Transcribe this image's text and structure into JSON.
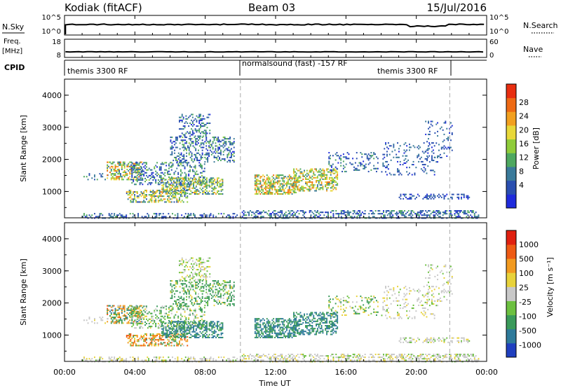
{
  "header": {
    "title": "Kodiak (fitACF)",
    "beam": "Beam 03",
    "date": "15/Jul/2016"
  },
  "panels": {
    "nsky": {
      "label": "N.Sky",
      "tick_top": "10^5",
      "tick_bottom": "10^0",
      "right_label": "N.Search",
      "right_tick_top": "10^5",
      "right_tick_bottom": "10^0"
    },
    "freq": {
      "label_top": "Freq.",
      "label_unit": "[MHz]",
      "tick_top": "18",
      "tick_bottom": "8",
      "right_label": "Nave",
      "right_tick_top": "60",
      "right_tick_bottom": "0"
    },
    "cpid": {
      "label": "CPID",
      "segments": [
        "themis 3300 RF",
        "normalsound (fast) -157 RF",
        "themis 3300 RF"
      ]
    }
  },
  "colorbars": {
    "power": {
      "label": "Power [dB]",
      "ticks": [
        "4",
        "8",
        "12",
        "16",
        "20",
        "24",
        "28"
      ],
      "colors": [
        "#1f2bdc",
        "#2a4fb0",
        "#3a7a9a",
        "#4ea860",
        "#8fcc3a",
        "#e8d83a",
        "#f2a020",
        "#ee6a14",
        "#e82e10"
      ]
    },
    "velocity": {
      "label": "Velocity [m s⁻¹]",
      "ticks": [
        "1000",
        "500",
        "100",
        "25",
        "-25",
        "-100",
        "-500",
        "-1000"
      ],
      "colors": [
        "#1f3fbf",
        "#2e7a9a",
        "#3a9a5a",
        "#6cc040",
        "#c8c8c8",
        "#e8d23a",
        "#f29a20",
        "#ee5a14",
        "#e02010"
      ]
    }
  },
  "chart_data": {
    "type": "heatmap",
    "xlabel": "Time UT",
    "ylabel": "Slant Range [km]",
    "xticks": [
      "00:00",
      "04:00",
      "08:00",
      "12:00",
      "16:00",
      "20:00",
      "00:00"
    ],
    "yticks": [
      "1000",
      "2000",
      "3000",
      "4000"
    ],
    "xlim": [
      0,
      24
    ],
    "ylim": [
      180,
      4500
    ],
    "mode_changes": [
      10.0,
      21.9
    ],
    "echo_regions": [
      {
        "t0": 1.0,
        "t1": 9.8,
        "r0": 150,
        "r1": 320,
        "density": 0.35,
        "pwr": [
          2,
          12
        ],
        "vel": [
          -40,
          40
        ]
      },
      {
        "t0": 10.0,
        "t1": 23.5,
        "r0": 150,
        "r1": 380,
        "density": 0.45,
        "pwr": [
          2,
          12
        ],
        "vel": [
          -40,
          40
        ]
      },
      {
        "t0": 1.0,
        "t1": 2.5,
        "r0": 1350,
        "r1": 1550,
        "density": 0.18,
        "pwr": [
          4,
          12
        ],
        "vel": [
          -30,
          30
        ]
      },
      {
        "t0": 2.4,
        "t1": 4.4,
        "r0": 1350,
        "r1": 1900,
        "density": 0.45,
        "pwr": [
          6,
          26
        ],
        "vel": [
          -600,
          600
        ]
      },
      {
        "t0": 3.5,
        "t1": 7.0,
        "r0": 650,
        "r1": 1050,
        "density": 0.45,
        "pwr": [
          4,
          24
        ],
        "vel": [
          -800,
          300
        ]
      },
      {
        "t0": 3.8,
        "t1": 8.0,
        "r0": 1200,
        "r1": 1900,
        "density": 0.35,
        "pwr": [
          2,
          14
        ],
        "vel": [
          -50,
          200
        ]
      },
      {
        "t0": 5.5,
        "t1": 9.0,
        "r0": 900,
        "r1": 1400,
        "density": 0.5,
        "pwr": [
          6,
          22
        ],
        "vel": [
          80,
          900
        ]
      },
      {
        "t0": 6.0,
        "t1": 9.6,
        "r0": 1900,
        "r1": 2700,
        "density": 0.35,
        "pwr": [
          2,
          14
        ],
        "vel": [
          -80,
          400
        ]
      },
      {
        "t0": 6.5,
        "t1": 8.3,
        "r0": 2700,
        "r1": 3400,
        "density": 0.25,
        "pwr": [
          2,
          12
        ],
        "vel": [
          -60,
          80
        ]
      },
      {
        "t0": 10.8,
        "t1": 13.2,
        "r0": 900,
        "r1": 1500,
        "density": 0.55,
        "pwr": [
          8,
          26
        ],
        "vel": [
          100,
          900
        ]
      },
      {
        "t0": 13.0,
        "t1": 15.5,
        "r0": 1000,
        "r1": 1700,
        "density": 0.5,
        "pwr": [
          8,
          24
        ],
        "vel": [
          100,
          900
        ]
      },
      {
        "t0": 15.0,
        "t1": 17.8,
        "r0": 1600,
        "r1": 2200,
        "density": 0.2,
        "pwr": [
          2,
          12
        ],
        "vel": [
          -100,
          200
        ]
      },
      {
        "t0": 18.0,
        "t1": 21.0,
        "r0": 1500,
        "r1": 2500,
        "density": 0.15,
        "pwr": [
          2,
          10
        ],
        "vel": [
          -40,
          40
        ]
      },
      {
        "t0": 19.0,
        "t1": 23.0,
        "r0": 750,
        "r1": 900,
        "density": 0.4,
        "pwr": [
          2,
          8
        ],
        "vel": [
          -40,
          40
        ]
      },
      {
        "t0": 20.5,
        "t1": 22.0,
        "r0": 1900,
        "r1": 3200,
        "density": 0.12,
        "pwr": [
          2,
          10
        ],
        "vel": [
          -40,
          40
        ]
      }
    ]
  }
}
